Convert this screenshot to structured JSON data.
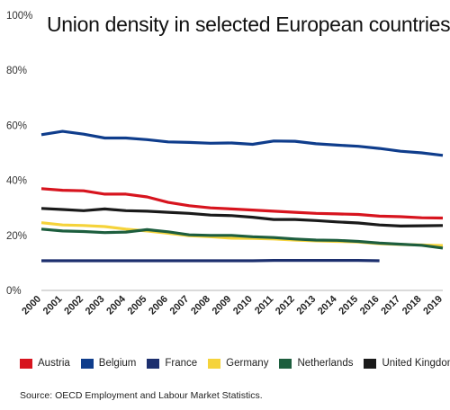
{
  "chart_data": {
    "type": "line",
    "title": "Union density in selected European countries",
    "xlabel": "",
    "ylabel": "",
    "ylim": [
      0,
      100
    ],
    "y_ticks": [
      "0%",
      "20%",
      "40%",
      "60%",
      "80%",
      "100%"
    ],
    "y_tick_values": [
      0,
      20,
      40,
      60,
      80,
      100
    ],
    "categories": [
      "2000",
      "2001",
      "2002",
      "2003",
      "2004",
      "2005",
      "2006",
      "2007",
      "2008",
      "2009",
      "2010",
      "2011",
      "2012",
      "2013",
      "2014",
      "2015",
      "2016",
      "2017",
      "2018",
      "2019"
    ],
    "grid": false,
    "legend_position": "bottom",
    "series": [
      {
        "name": "Austria",
        "color": "#d7141e",
        "values": [
          37.0,
          36.4,
          36.2,
          35.0,
          35.0,
          34.0,
          32.0,
          30.8,
          30.0,
          29.6,
          29.2,
          28.8,
          28.4,
          28.0,
          27.8,
          27.6,
          27.0,
          26.8,
          26.4,
          26.3
        ]
      },
      {
        "name": "Belgium",
        "color": "#0f3d8c",
        "values": [
          56.6,
          57.8,
          56.8,
          55.4,
          55.4,
          54.8,
          54.0,
          53.8,
          53.5,
          53.6,
          53.1,
          54.3,
          54.2,
          53.3,
          52.8,
          52.4,
          51.6,
          50.6,
          50.0,
          49.1
        ]
      },
      {
        "name": "France",
        "color": "#1c2f6e",
        "values": [
          10.8,
          10.8,
          10.8,
          10.8,
          10.8,
          10.8,
          10.8,
          10.8,
          10.8,
          10.8,
          10.8,
          10.9,
          10.9,
          10.9,
          10.9,
          10.9,
          10.8,
          null,
          null,
          null
        ]
      },
      {
        "name": "Germany",
        "color": "#f5d33b",
        "values": [
          24.6,
          23.8,
          23.6,
          23.2,
          22.3,
          21.6,
          20.8,
          19.9,
          19.5,
          19.0,
          18.9,
          18.7,
          18.3,
          18.0,
          17.8,
          17.6,
          17.0,
          16.7,
          16.5,
          16.3
        ]
      },
      {
        "name": "Netherlands",
        "color": "#1d5e3e",
        "values": [
          22.3,
          21.6,
          21.4,
          21.0,
          21.2,
          22.1,
          21.3,
          20.2,
          20.0,
          20.0,
          19.5,
          19.2,
          18.7,
          18.3,
          18.2,
          17.8,
          17.2,
          16.8,
          16.4,
          15.4
        ]
      },
      {
        "name": "United Kingdom",
        "color": "#1a1a1a",
        "values": [
          29.8,
          29.4,
          29.0,
          29.6,
          29.0,
          28.8,
          28.4,
          28.0,
          27.4,
          27.2,
          26.6,
          25.8,
          25.8,
          25.4,
          24.9,
          24.5,
          23.8,
          23.4,
          23.5,
          23.6
        ]
      }
    ]
  },
  "footer": {
    "source": "Source: OECD Employment and Labour Market Statistics."
  }
}
